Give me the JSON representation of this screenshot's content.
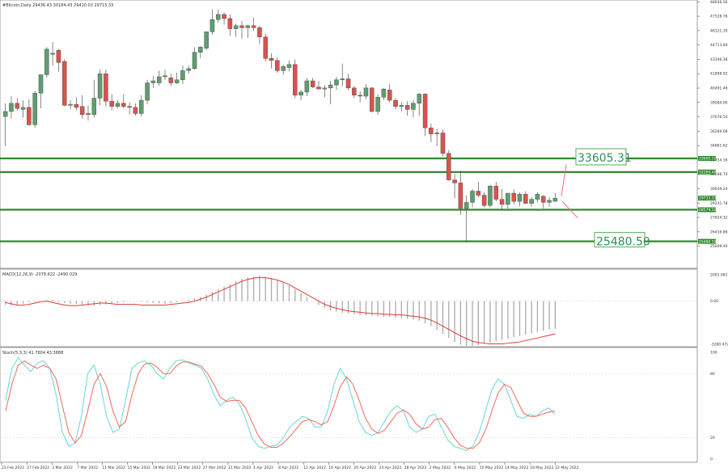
{
  "chart_data": {
    "type": "candlestick",
    "symbol_header": "#Bitcoin,Daily  29436.43 30184.43 29410.03 29715.33",
    "price_axis": {
      "min": 23000,
      "max": 48800,
      "ticks": [
        "48936.56",
        "47528.76",
        "46121.30",
        "44713.84",
        "43306.38",
        "41898.92",
        "40491.46",
        "39084.00",
        "37676.54",
        "36269.08",
        "34861.62",
        "33454.16",
        "32046.70",
        "30639.24",
        "29231.78",
        "27824.32",
        "26416.86",
        "25009.40"
      ]
    },
    "price_boxes": [
      {
        "value": "33605.31",
        "y": 33605.31
      },
      {
        "value": "32269.48",
        "y": 32269.48
      },
      {
        "value": "29715.33",
        "y": 29715.33
      },
      {
        "value": "28579.50",
        "y": 28579.5
      },
      {
        "value": "25480.50",
        "y": 25480.5
      }
    ],
    "levels": [
      {
        "label": "33605.31",
        "value": 33605.31
      },
      {
        "label": "",
        "value": 32269.48
      },
      {
        "label": "",
        "value": 28579.5
      },
      {
        "label": "25480.50",
        "value": 25480.5
      }
    ],
    "candles": [
      {
        "o": 37700,
        "h": 39000,
        "l": 34800,
        "c": 38200
      },
      {
        "o": 38200,
        "h": 39700,
        "l": 37500,
        "c": 39000
      },
      {
        "o": 39000,
        "h": 39500,
        "l": 38300,
        "c": 38500
      },
      {
        "o": 38400,
        "h": 39300,
        "l": 37600,
        "c": 38600
      },
      {
        "o": 38600,
        "h": 39400,
        "l": 36800,
        "c": 36900
      },
      {
        "o": 36900,
        "h": 40200,
        "l": 36600,
        "c": 40000
      },
      {
        "o": 40000,
        "h": 41800,
        "l": 38500,
        "c": 41800
      },
      {
        "o": 41800,
        "h": 44500,
        "l": 41500,
        "c": 44300
      },
      {
        "o": 43800,
        "h": 45000,
        "l": 42700,
        "c": 43900
      },
      {
        "o": 44200,
        "h": 44300,
        "l": 42100,
        "c": 43000
      },
      {
        "o": 43100,
        "h": 43300,
        "l": 38700,
        "c": 38800
      },
      {
        "o": 38800,
        "h": 39300,
        "l": 38400,
        "c": 38900
      },
      {
        "o": 38900,
        "h": 39600,
        "l": 38300,
        "c": 38600
      },
      {
        "o": 38700,
        "h": 39800,
        "l": 37500,
        "c": 37900
      },
      {
        "o": 38000,
        "h": 38800,
        "l": 37300,
        "c": 37900
      },
      {
        "o": 37900,
        "h": 41300,
        "l": 37600,
        "c": 39500
      },
      {
        "o": 39500,
        "h": 42300,
        "l": 38800,
        "c": 41900
      },
      {
        "o": 41900,
        "h": 42300,
        "l": 38700,
        "c": 39200
      },
      {
        "o": 39200,
        "h": 39900,
        "l": 38300,
        "c": 38700
      },
      {
        "o": 38700,
        "h": 39300,
        "l": 38500,
        "c": 39000
      },
      {
        "o": 39000,
        "h": 39900,
        "l": 38500,
        "c": 38700
      },
      {
        "o": 38700,
        "h": 39100,
        "l": 37900,
        "c": 38600
      },
      {
        "o": 38600,
        "h": 39000,
        "l": 37800,
        "c": 38000
      },
      {
        "o": 38000,
        "h": 39800,
        "l": 37700,
        "c": 39300
      },
      {
        "o": 39300,
        "h": 41300,
        "l": 38900,
        "c": 41000
      },
      {
        "o": 41000,
        "h": 41700,
        "l": 40500,
        "c": 41200
      },
      {
        "o": 41000,
        "h": 42200,
        "l": 40700,
        "c": 41600
      },
      {
        "o": 41600,
        "h": 42300,
        "l": 41300,
        "c": 41700
      },
      {
        "o": 41500,
        "h": 41900,
        "l": 40700,
        "c": 41000
      },
      {
        "o": 41000,
        "h": 42000,
        "l": 40900,
        "c": 41300
      },
      {
        "o": 41300,
        "h": 42700,
        "l": 40900,
        "c": 42200
      },
      {
        "o": 42200,
        "h": 42700,
        "l": 41900,
        "c": 42400
      },
      {
        "o": 42400,
        "h": 44500,
        "l": 42300,
        "c": 44000
      },
      {
        "o": 44000,
        "h": 44600,
        "l": 43400,
        "c": 44500
      },
      {
        "o": 44400,
        "h": 46000,
        "l": 44200,
        "c": 46000
      },
      {
        "o": 46000,
        "h": 48200,
        "l": 45700,
        "c": 47200
      },
      {
        "o": 47200,
        "h": 48200,
        "l": 46900,
        "c": 47700
      },
      {
        "o": 47700,
        "h": 47900,
        "l": 46700,
        "c": 47300
      },
      {
        "o": 47300,
        "h": 47700,
        "l": 45600,
        "c": 46300
      },
      {
        "o": 46300,
        "h": 46800,
        "l": 45500,
        "c": 46600
      },
      {
        "o": 46600,
        "h": 47100,
        "l": 45300,
        "c": 46400
      },
      {
        "o": 46400,
        "h": 46700,
        "l": 45400,
        "c": 46600
      },
      {
        "o": 46600,
        "h": 47400,
        "l": 46100,
        "c": 46400
      },
      {
        "o": 46400,
        "h": 46600,
        "l": 44800,
        "c": 45500
      },
      {
        "o": 45500,
        "h": 45800,
        "l": 43100,
        "c": 43400
      },
      {
        "o": 43400,
        "h": 43900,
        "l": 42400,
        "c": 43200
      },
      {
        "o": 43200,
        "h": 43500,
        "l": 42000,
        "c": 42200
      },
      {
        "o": 42200,
        "h": 42800,
        "l": 41800,
        "c": 42600
      },
      {
        "o": 42500,
        "h": 43200,
        "l": 42100,
        "c": 42800
      },
      {
        "o": 42800,
        "h": 43300,
        "l": 39500,
        "c": 39800
      },
      {
        "o": 39800,
        "h": 40300,
        "l": 39300,
        "c": 40100
      },
      {
        "o": 40100,
        "h": 41500,
        "l": 39700,
        "c": 41200
      },
      {
        "o": 41200,
        "h": 41500,
        "l": 40500,
        "c": 40600
      },
      {
        "o": 40600,
        "h": 41200,
        "l": 40400,
        "c": 40400
      },
      {
        "o": 40400,
        "h": 40800,
        "l": 39600,
        "c": 40500
      },
      {
        "o": 40500,
        "h": 41200,
        "l": 38900,
        "c": 40800
      },
      {
        "o": 40800,
        "h": 41600,
        "l": 40300,
        "c": 41300
      },
      {
        "o": 41300,
        "h": 42900,
        "l": 40700,
        "c": 41400
      },
      {
        "o": 41400,
        "h": 41900,
        "l": 40300,
        "c": 40500
      },
      {
        "o": 40500,
        "h": 40700,
        "l": 39500,
        "c": 39800
      },
      {
        "o": 39800,
        "h": 40200,
        "l": 39100,
        "c": 39700
      },
      {
        "o": 39700,
        "h": 40900,
        "l": 39400,
        "c": 40500
      },
      {
        "o": 40500,
        "h": 40600,
        "l": 38100,
        "c": 38200
      },
      {
        "o": 38200,
        "h": 39900,
        "l": 37900,
        "c": 39600
      },
      {
        "o": 39600,
        "h": 40500,
        "l": 39300,
        "c": 40400
      },
      {
        "o": 40300,
        "h": 40900,
        "l": 39100,
        "c": 39300
      },
      {
        "o": 39300,
        "h": 39500,
        "l": 38400,
        "c": 38700
      },
      {
        "o": 38700,
        "h": 39100,
        "l": 38200,
        "c": 38800
      },
      {
        "o": 38800,
        "h": 39200,
        "l": 37800,
        "c": 38400
      },
      {
        "o": 38400,
        "h": 39300,
        "l": 37600,
        "c": 39000
      },
      {
        "o": 39000,
        "h": 40000,
        "l": 37800,
        "c": 39900
      },
      {
        "o": 39900,
        "h": 40000,
        "l": 35800,
        "c": 36600
      },
      {
        "o": 36600,
        "h": 37000,
        "l": 35200,
        "c": 36000
      },
      {
        "o": 36000,
        "h": 36500,
        "l": 34800,
        "c": 36100
      },
      {
        "o": 36100,
        "h": 36400,
        "l": 33800,
        "c": 34100
      },
      {
        "o": 34100,
        "h": 34400,
        "l": 31400,
        "c": 31500
      },
      {
        "o": 31500,
        "h": 32100,
        "l": 29700,
        "c": 31200
      },
      {
        "o": 31200,
        "h": 32400,
        "l": 28100,
        "c": 28700
      },
      {
        "o": 28700,
        "h": 30000,
        "l": 25400,
        "c": 29300
      },
      {
        "o": 29300,
        "h": 30600,
        "l": 28800,
        "c": 30400
      },
      {
        "o": 30400,
        "h": 31300,
        "l": 29800,
        "c": 30000
      },
      {
        "o": 30000,
        "h": 30300,
        "l": 28800,
        "c": 29000
      },
      {
        "o": 29000,
        "h": 31000,
        "l": 28800,
        "c": 30900
      },
      {
        "o": 30900,
        "h": 31300,
        "l": 29400,
        "c": 29600
      },
      {
        "o": 29600,
        "h": 30600,
        "l": 28600,
        "c": 29100
      },
      {
        "o": 29100,
        "h": 30200,
        "l": 28700,
        "c": 30200
      },
      {
        "o": 30200,
        "h": 30600,
        "l": 29100,
        "c": 29400
      },
      {
        "o": 29400,
        "h": 30300,
        "l": 28900,
        "c": 30100
      },
      {
        "o": 30100,
        "h": 30400,
        "l": 29200,
        "c": 29200
      },
      {
        "o": 29200,
        "h": 29800,
        "l": 28900,
        "c": 29600
      },
      {
        "o": 29600,
        "h": 30300,
        "l": 29300,
        "c": 30100
      },
      {
        "o": 29900,
        "h": 30000,
        "l": 28700,
        "c": 29300
      },
      {
        "o": 29300,
        "h": 29800,
        "l": 28900,
        "c": 29500
      },
      {
        "o": 29400,
        "h": 30200,
        "l": 29400,
        "c": 29700
      }
    ],
    "dates": [
      "23 Feb 2022",
      "27 Feb 2022",
      "3 Mar 2022",
      "7 Mar 2022",
      "11 Mar 2022",
      "15 Mar 2022",
      "19 Mar 2022",
      "23 Mar 2022",
      "27 Mar 2022",
      "31 Mar 2022",
      "4 Apr 2022",
      "8 Apr 2022",
      "12 Apr 2022",
      "16 Apr 2022",
      "20 Apr 2022",
      "24 Apr 2022",
      "28 Apr 2022",
      "2 May 2022",
      "6 May 2022",
      "10 May 2022",
      "14 May 2022",
      "18 May 2022",
      "22 May 2022"
    ],
    "macd": {
      "label": "MACD(12,26,9) -2078.622 -2490.029",
      "axis": [
        "2001.081",
        "0.00",
        "-3280.472"
      ],
      "hist": [
        -300,
        -350,
        -250,
        -200,
        -100,
        -50,
        0,
        50,
        100,
        -100,
        -150,
        -200,
        -200,
        -250,
        -300,
        -350,
        -300,
        -250,
        -200,
        -150,
        -100,
        -50,
        0,
        -50,
        -100,
        -150,
        -180,
        -200,
        -150,
        -100,
        0,
        100,
        200,
        300,
        500,
        700,
        900,
        1100,
        1300,
        1500,
        1700,
        1800,
        1850,
        1900,
        1850,
        1750,
        1600,
        1400,
        1200,
        900,
        600,
        300,
        0,
        -300,
        -500,
        -700,
        -800,
        -900,
        -950,
        -1000,
        -1050,
        -1100,
        -1100,
        -1150,
        -1200,
        -1200,
        -1250,
        -1300,
        -1350,
        -1400,
        -1500,
        -1700,
        -1900,
        -2200,
        -2500,
        -2800,
        -3100,
        -3300,
        -3400,
        -3400,
        -3350,
        -3250,
        -3150,
        -3050,
        -2950,
        -2850,
        -2750,
        -2650,
        -2550,
        -2450,
        -2350,
        -2250,
        -2150,
        -2100
      ],
      "signal": [
        -100,
        -200,
        -300,
        -300,
        -250,
        -150,
        -50,
        0,
        -100,
        -200,
        -300,
        -350,
        -350,
        -300,
        -250,
        -200,
        -150,
        -150,
        -200,
        -250,
        -250,
        -250,
        -250,
        -300,
        -300,
        -300,
        -300,
        -300,
        -250,
        -200,
        -150,
        -100,
        0,
        150,
        300,
        500,
        700,
        900,
        1100,
        1300,
        1500,
        1650,
        1750,
        1800,
        1780,
        1700,
        1600,
        1450,
        1250,
        1000,
        750,
        500,
        250,
        0,
        -250,
        -400,
        -550,
        -650,
        -750,
        -800,
        -850,
        -900,
        -950,
        -950,
        -1000,
        -1000,
        -1050,
        -1050,
        -1100,
        -1150,
        -1200,
        -1300,
        -1450,
        -1650,
        -1900,
        -2150,
        -2400,
        -2650,
        -2850,
        -3050,
        -3150,
        -3200,
        -3250,
        -3250,
        -3250,
        -3200,
        -3150,
        -3100,
        -3000,
        -2900,
        -2800,
        -2700,
        -2600,
        -2500
      ]
    },
    "stoch": {
      "label": "Stoch(5,3,3) 41.7804 43.3888",
      "axis": [
        "100",
        "80",
        "20",
        "0"
      ],
      "k": [
        55,
        85,
        95,
        88,
        82,
        90,
        92,
        85,
        60,
        25,
        12,
        15,
        40,
        80,
        88,
        70,
        40,
        25,
        28,
        55,
        85,
        90,
        92,
        88,
        80,
        75,
        85,
        92,
        93,
        90,
        88,
        85,
        75,
        60,
        50,
        55,
        58,
        52,
        38,
        20,
        12,
        10,
        12,
        13,
        20,
        30,
        35,
        40,
        38,
        30,
        30,
        45,
        70,
        85,
        75,
        55,
        35,
        25,
        22,
        25,
        35,
        45,
        50,
        45,
        30,
        25,
        28,
        40,
        42,
        30,
        18,
        12,
        10,
        8,
        12,
        25,
        45,
        65,
        75,
        70,
        55,
        40,
        38,
        42,
        40,
        45,
        48,
        42
      ],
      "d": [
        45,
        70,
        88,
        92,
        88,
        85,
        88,
        85,
        75,
        50,
        25,
        15,
        22,
        45,
        70,
        80,
        68,
        45,
        30,
        35,
        60,
        80,
        89,
        90,
        86,
        80,
        80,
        87,
        91,
        91,
        89,
        87,
        80,
        70,
        58,
        54,
        55,
        55,
        48,
        35,
        22,
        14,
        11,
        11,
        15,
        21,
        28,
        35,
        37,
        35,
        32,
        35,
        50,
        68,
        77,
        70,
        55,
        38,
        28,
        24,
        27,
        35,
        43,
        46,
        42,
        33,
        28,
        30,
        37,
        38,
        30,
        20,
        13,
        10,
        10,
        15,
        27,
        45,
        62,
        70,
        67,
        55,
        43,
        40,
        40,
        42,
        44,
        45
      ]
    }
  }
}
